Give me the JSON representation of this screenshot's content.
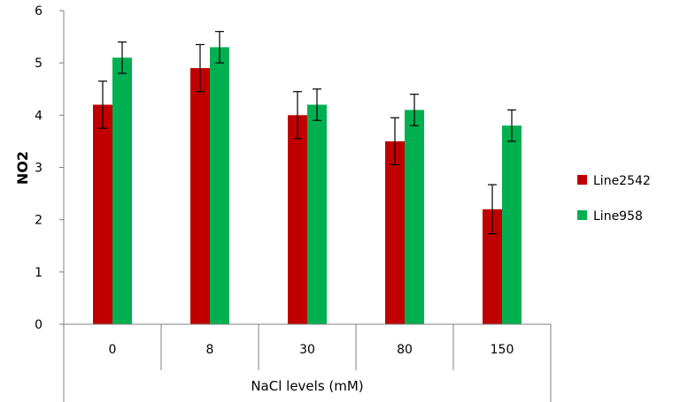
{
  "chart_data": {
    "type": "bar",
    "title": "",
    "xlabel": "NaCl levels (mM)",
    "ylabel": "NO2",
    "categories": [
      "0",
      "8",
      "30",
      "80",
      "150"
    ],
    "ylim": [
      0,
      6
    ],
    "yticks": [
      "0",
      "1",
      "2",
      "3",
      "4",
      "5",
      "6"
    ],
    "grid": false,
    "legend_position": "right",
    "series": [
      {
        "name": "Line2542",
        "color": "#c00000",
        "values": [
          4.2,
          4.9,
          4.0,
          3.5,
          2.2
        ],
        "errors": [
          0.45,
          0.45,
          0.45,
          0.45,
          0.47
        ]
      },
      {
        "name": "Line958",
        "color": "#00b050",
        "values": [
          5.1,
          5.3,
          4.2,
          4.1,
          3.8
        ],
        "errors": [
          0.3,
          0.3,
          0.3,
          0.3,
          0.3
        ]
      }
    ]
  }
}
